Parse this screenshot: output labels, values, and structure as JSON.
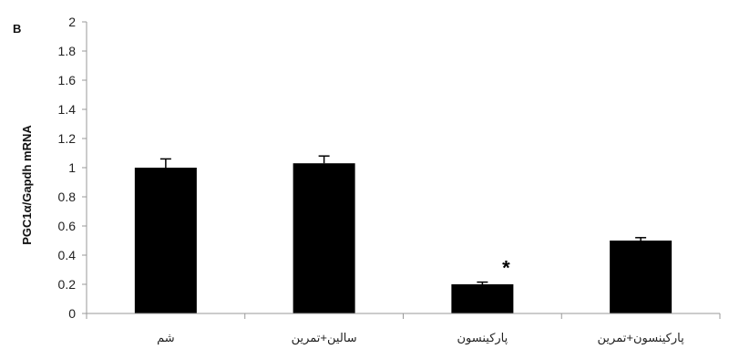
{
  "chart_data": {
    "type": "bar",
    "panel_label": "B",
    "ylabel": "PGC1α/Gapdh mRNA",
    "xlabel": "",
    "ylim": [
      0,
      2
    ],
    "ytick_step": 0.2,
    "yticks": [
      "0",
      "0.2",
      "0.4",
      "0.6",
      "0.8",
      "1",
      "1.2",
      "1.4",
      "1.6",
      "1.8",
      "2"
    ],
    "categories": [
      "شم",
      "سالین+تمرین",
      "پارکینسون",
      "پارکینسون+تمرین"
    ],
    "values": [
      1.0,
      1.03,
      0.2,
      0.5
    ],
    "errors": [
      0.06,
      0.05,
      0.015,
      0.02
    ],
    "significance": [
      "",
      "",
      "*",
      ""
    ],
    "bar_color": "#000000",
    "grid": false
  }
}
